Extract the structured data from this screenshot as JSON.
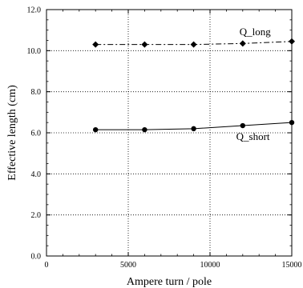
{
  "chart_data": {
    "type": "line",
    "xlabel": "Ampere turn / pole",
    "ylabel": "Effective length (cm)",
    "xlim": [
      0,
      15000
    ],
    "ylim": [
      0,
      12
    ],
    "xticks": [
      0,
      5000,
      10000,
      15000
    ],
    "xtick_labels": [
      "0",
      "5000",
      "10000",
      "15000"
    ],
    "yticks": [
      0,
      2,
      4,
      6,
      8,
      10,
      12
    ],
    "ytick_labels": [
      "0.0",
      "2.0",
      "4.0",
      "6.0",
      "8.0",
      "10.0",
      "12.0"
    ],
    "grid": true,
    "series": [
      {
        "name": "Q_long",
        "marker": "diamond",
        "line_style": "dash-dot",
        "x": [
          3000,
          6000,
          9000,
          12000,
          15000
        ],
        "y": [
          10.3,
          10.3,
          10.3,
          10.35,
          10.45
        ]
      },
      {
        "name": "Q_short",
        "marker": "circle",
        "line_style": "solid",
        "x": [
          3000,
          6000,
          9000,
          12000,
          15000
        ],
        "y": [
          6.15,
          6.15,
          6.2,
          6.35,
          6.5
        ]
      }
    ]
  }
}
